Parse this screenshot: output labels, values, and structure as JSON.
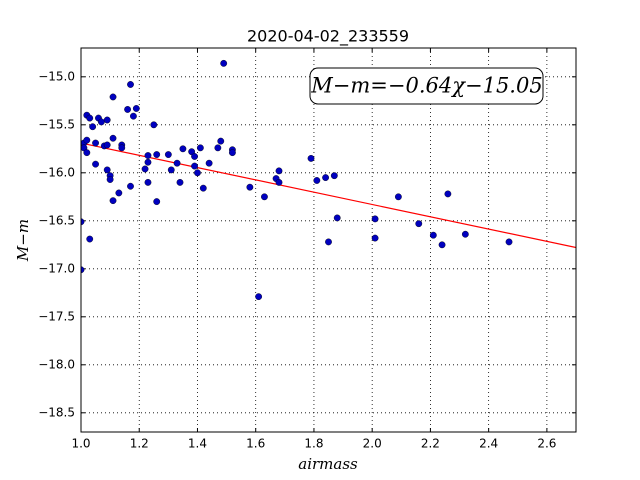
{
  "chart_data": {
    "type": "scatter",
    "title": "2020-04-02_233559",
    "x_label": "airmass",
    "y_label": "M−m",
    "annotation": "M−m=−0.64χ−15.05",
    "xlim": [
      1.0,
      2.7
    ],
    "ylim": [
      -18.7,
      -14.7
    ],
    "xticks": [
      {
        "value": 1.0,
        "label": "1.0"
      },
      {
        "value": 1.2,
        "label": "1.2"
      },
      {
        "value": 1.4,
        "label": "1.4"
      },
      {
        "value": 1.6,
        "label": "1.6"
      },
      {
        "value": 1.8,
        "label": "1.8"
      },
      {
        "value": 2.0,
        "label": "2.0"
      },
      {
        "value": 2.2,
        "label": "2.2"
      },
      {
        "value": 2.4,
        "label": "2.4"
      },
      {
        "value": 2.6,
        "label": "2.6"
      }
    ],
    "yticks": [
      {
        "value": -18.5,
        "label": "−18.5"
      },
      {
        "value": -18.0,
        "label": "−18.0"
      },
      {
        "value": -17.5,
        "label": "−17.5"
      },
      {
        "value": -17.0,
        "label": "−17.0"
      },
      {
        "value": -16.5,
        "label": "−16.5"
      },
      {
        "value": -16.0,
        "label": "−16.0"
      },
      {
        "value": -15.5,
        "label": "−15.5"
      },
      {
        "value": -15.0,
        "label": "−15.0"
      }
    ],
    "grid": true,
    "points": {
      "color": "#0000bf",
      "x": [
        1.0,
        1.0,
        1.01,
        1.01,
        1.02,
        1.02,
        1.02,
        1.03,
        1.03,
        1.04,
        1.05,
        1.05,
        1.06,
        1.07,
        1.08,
        1.09,
        1.09,
        1.09,
        1.1,
        1.1,
        1.11,
        1.11,
        1.11,
        1.13,
        1.14,
        1.14,
        1.16,
        1.17,
        1.17,
        1.18,
        1.19,
        1.22,
        1.23,
        1.23,
        1.23,
        1.25,
        1.26,
        1.26,
        1.3,
        1.31,
        1.33,
        1.34,
        1.35,
        1.38,
        1.39,
        1.39,
        1.4,
        1.41,
        1.42,
        1.44,
        1.47,
        1.48,
        1.49,
        1.52,
        1.52,
        1.58,
        1.61,
        1.63,
        1.67,
        1.68,
        1.68,
        1.79,
        1.81,
        1.84,
        1.85,
        1.87,
        1.88,
        2.01,
        2.01,
        2.09,
        2.16,
        2.21,
        2.24,
        2.26,
        2.32,
        2.47
      ],
      "values": [
        -16.51,
        -17.01,
        -15.69,
        -15.74,
        -15.79,
        -15.4,
        -15.66,
        -15.43,
        -16.69,
        -15.52,
        -15.69,
        -15.91,
        -15.43,
        -15.47,
        -15.72,
        -15.45,
        -15.97,
        -15.71,
        -16.03,
        -16.07,
        -15.21,
        -15.64,
        -16.29,
        -16.21,
        -15.71,
        -15.74,
        -15.34,
        -16.14,
        -15.08,
        -15.41,
        -15.33,
        -15.96,
        -15.82,
        -16.1,
        -15.89,
        -15.5,
        -15.81,
        -16.3,
        -15.81,
        -15.97,
        -15.9,
        -16.1,
        -15.75,
        -15.78,
        -15.83,
        -15.93,
        -16.0,
        -15.74,
        -16.16,
        -15.9,
        -15.74,
        -15.67,
        -14.86,
        -15.76,
        -15.79,
        -16.15,
        -17.29,
        -16.25,
        -16.06,
        -16.1,
        -15.98,
        -15.85,
        -16.08,
        -16.05,
        -16.72,
        -16.03,
        -16.47,
        -16.68,
        -16.48,
        -16.25,
        -16.53,
        -16.65,
        -16.75,
        -16.22,
        -16.64,
        -16.72
      ]
    },
    "fit": {
      "color": "#ff0000",
      "x": [
        1.0,
        2.7
      ],
      "values": [
        -15.69,
        -16.778
      ]
    }
  }
}
